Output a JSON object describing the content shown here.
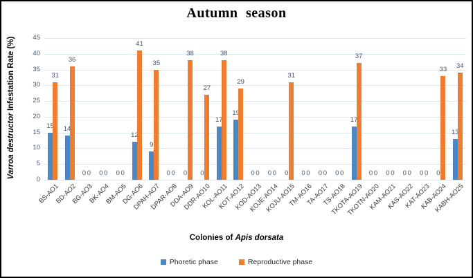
{
  "chart_data": {
    "type": "bar",
    "title": "Autumn season",
    "categories": [
      "BS-AO1",
      "BD-AO2",
      "BG-AO3",
      "BK-AO4",
      "BM-AO5",
      "DG-AO6",
      "DPAH-AO7",
      "DPAR-AO8",
      "DDA-AO9",
      "DDR-AO10",
      "KOL-AO11",
      "KOT-AO12",
      "KOD-AO13",
      "KOJE-AO14",
      "KOJU-AO15",
      "TM-AO16",
      "TA-AO17",
      "TS-AO18",
      "TKOTA-AO19",
      "TKOTN-AO20",
      "KAM-AO21",
      "KAS-AO22",
      "KAT-AO23",
      "KAB-AO24",
      "KABH-AO25"
    ],
    "series": [
      {
        "name": "Phoretic phase",
        "color": "#4e87c6",
        "values": [
          15,
          14,
          0,
          0,
          0,
          12,
          9,
          0,
          0,
          0,
          17,
          19,
          0,
          0,
          0,
          0,
          0,
          0,
          17,
          0,
          0,
          0,
          0,
          0,
          13
        ]
      },
      {
        "name": "Reproductive phase",
        "color": "#ed7d31",
        "values": [
          31,
          36,
          0,
          0,
          0,
          41,
          35,
          0,
          38,
          27,
          38,
          29,
          0,
          0,
          31,
          0,
          0,
          0,
          37,
          0,
          0,
          0,
          0,
          33,
          34
        ]
      }
    ],
    "xlabel": "Colonies of Apis dorsata",
    "xlabel_prefix": "Colonies of ",
    "xlabel_italic": "Apis dorsata",
    "ylabel": "Varroa destructor Infestation Rate (%)",
    "ylabel_italic": "Varroa destructor",
    "ylabel_rest": " Infestation Rate (%)",
    "ylim": [
      0,
      45
    ],
    "yticks": [
      0,
      5,
      10,
      15,
      20,
      25,
      30,
      35,
      40,
      45
    ],
    "grid": true,
    "data_labels": true,
    "legend_position": "bottom",
    "colors": {
      "gridline": "#dde5ef",
      "data_label": "#44546a",
      "axis_tick_label": "#44546a",
      "category_label": "#3a3a3a"
    }
  }
}
